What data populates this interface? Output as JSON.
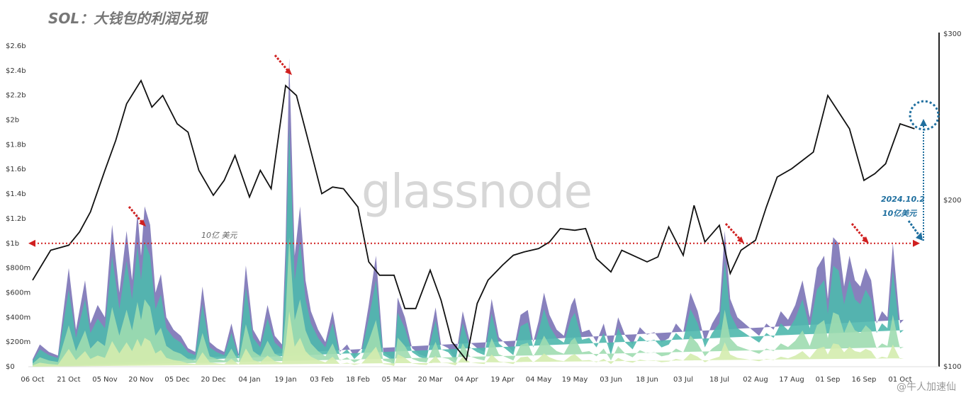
{
  "title": "SOL：大钱包的利润兑现",
  "watermark": "glassnode",
  "corner_mark": "@牛人加速仙",
  "chart_data": {
    "type": "area",
    "title": "SOL：大钱包的利润兑现",
    "left_axis": {
      "ticks": [
        "$0",
        "$200m",
        "$400m",
        "$600m",
        "$800m",
        "$1b",
        "$1.2b",
        "$1.4b",
        "$1.6b",
        "$1.8b",
        "$2b",
        "$2.2b",
        "$2.4b",
        "$2.6b"
      ],
      "tick_values": [
        0,
        200,
        400,
        600,
        800,
        1000,
        1200,
        1400,
        1600,
        1800,
        2000,
        2200,
        2400,
        2600
      ],
      "unit": "million USD"
    },
    "right_axis": {
      "ticks": [
        "$100",
        "$200",
        "$300"
      ],
      "tick_values": [
        100,
        200,
        300
      ]
    },
    "x_ticks": [
      "06 Oct",
      "21 Oct",
      "05 Nov",
      "20 Nov",
      "05 Dec",
      "20 Dec",
      "04 Jan",
      "19 Jan",
      "03 Feb",
      "18 Feb",
      "05 Mar",
      "20 Mar",
      "04 Apr",
      "19 Apr",
      "04 May",
      "19 May",
      "03 Jun",
      "18 Jun",
      "03 Jul",
      "18 Jul",
      "02 Aug",
      "17 Aug",
      "01 Sep",
      "16 Sep",
      "01 Oct"
    ],
    "price_series": {
      "name": "",
      "x_tick_index": [
        0,
        0.5,
        1,
        1.3,
        1.6,
        2,
        2.3,
        2.6,
        3,
        3.3,
        3.6,
        4,
        4.3,
        4.6,
        5,
        5.3,
        5.6,
        6,
        6.3,
        6.6,
        7,
        7.3,
        7.6,
        8,
        8.3,
        8.6,
        9,
        9.3,
        9.6,
        10,
        10.3,
        10.6,
        11,
        11.3,
        11.6,
        12,
        12.3,
        12.6,
        13,
        13.3,
        13.6,
        14,
        14.3,
        14.6,
        15,
        15.3,
        15.6,
        16,
        16.3,
        16.6,
        17,
        17.3,
        17.6,
        18,
        18.3,
        18.6,
        19,
        19.3,
        19.6,
        20,
        20.3,
        20.6,
        21,
        21.3,
        21.6,
        22,
        22.3,
        22.6,
        23,
        23.3,
        23.6,
        24,
        24.4
      ],
      "values": [
        152,
        170,
        173,
        181,
        193,
        218,
        236,
        258,
        272,
        256,
        263,
        246,
        241,
        218,
        203,
        212,
        227,
        202,
        218,
        207,
        269,
        263,
        238,
        204,
        208,
        207,
        196,
        163,
        155,
        155,
        135,
        135,
        158,
        140,
        115,
        104,
        138,
        152,
        161,
        167,
        169,
        171,
        175,
        183,
        182,
        183,
        165,
        157,
        170,
        167,
        163,
        166,
        184,
        167,
        197,
        175,
        185,
        156,
        170,
        176,
        196,
        214,
        219,
        224,
        229,
        263,
        253,
        243,
        212,
        216,
        222,
        246,
        243
      ]
    },
    "area_series": [
      {
        "name": "",
        "color": "#7b73b6"
      },
      {
        "name": "",
        "color": "#4fb8ad"
      },
      {
        "name": "",
        "color": "#9fdcb0"
      },
      {
        "name": "",
        "color": "#d4ecae"
      }
    ],
    "area_total": {
      "x_tick_index": [
        0,
        0.2,
        0.45,
        0.7,
        1,
        1.2,
        1.45,
        1.6,
        1.8,
        2,
        2.2,
        2.4,
        2.6,
        2.75,
        2.9,
        3,
        3.1,
        3.25,
        3.4,
        3.55,
        3.7,
        3.9,
        4.1,
        4.3,
        4.5,
        4.7,
        4.9,
        5.1,
        5.3,
        5.5,
        5.7,
        5.9,
        6.1,
        6.3,
        6.5,
        6.7,
        6.9,
        7,
        7.1,
        7.25,
        7.4,
        7.55,
        7.7,
        7.9,
        8.1,
        8.3,
        8.5,
        8.7,
        8.9,
        9.1,
        9.3,
        9.5,
        9.7,
        9.9,
        10,
        10.1,
        10.3,
        10.5,
        10.7,
        10.9,
        11,
        11.15,
        11.3,
        11.5,
        11.7,
        11.9,
        12.1,
        12.3,
        12.5,
        12.7,
        12.9,
        13.1,
        13.3,
        13.5,
        13.7,
        13.85,
        14,
        14.15,
        14.3,
        14.5,
        14.7,
        14.9,
        15,
        15.2,
        15.4,
        15.6,
        15.8,
        16,
        16.2,
        16.4,
        16.6,
        16.8,
        17,
        17.2,
        17.4,
        17.6,
        17.8,
        18,
        18.2,
        18.4,
        18.6,
        18.8,
        19,
        19.15,
        19.3,
        19.5,
        19.7,
        19.9,
        20.1,
        20.3,
        20.5,
        20.7,
        20.9,
        21.1,
        21.3,
        21.5,
        21.7,
        21.9,
        22,
        22.15,
        22.3,
        22.45,
        22.6,
        22.75,
        22.9,
        23.05,
        23.2,
        23.35,
        23.5,
        23.65,
        23.8,
        23.95,
        24,
        24.1,
        24.2,
        24.35,
        24.5
      ],
      "values": [
        60,
        180,
        120,
        90,
        800,
        300,
        700,
        350,
        500,
        400,
        1150,
        600,
        1100,
        700,
        1250,
        900,
        1300,
        1150,
        600,
        750,
        400,
        300,
        250,
        150,
        120,
        650,
        200,
        150,
        120,
        350,
        100,
        820,
        300,
        200,
        500,
        250,
        180,
        1000,
        2500,
        900,
        1300,
        700,
        450,
        300,
        200,
        450,
        120,
        180,
        80,
        150,
        500,
        900,
        120,
        80,
        30,
        560,
        400,
        150,
        100,
        80,
        250,
        480,
        180,
        150,
        60,
        450,
        200,
        150,
        120,
        550,
        240,
        180,
        120,
        420,
        460,
        200,
        370,
        600,
        420,
        300,
        250,
        500,
        560,
        280,
        300,
        200,
        350,
        120,
        400,
        250,
        180,
        320,
        260,
        280,
        200,
        230,
        350,
        280,
        600,
        450,
        200,
        350,
        450,
        1100,
        550,
        400,
        350,
        300,
        250,
        350,
        300,
        450,
        380,
        500,
        700,
        400,
        800,
        900,
        550,
        1050,
        1000,
        650,
        900,
        700,
        650,
        800,
        700,
        350,
        450,
        400,
        1000,
        500,
        350,
        380
      ]
    },
    "reference_line": {
      "value": 1000,
      "label": "10亿 美元"
    },
    "annotations": [
      {
        "text": "2024.10.2"
      },
      {
        "text": "10亿美元"
      }
    ],
    "ylim_left": [
      0,
      2700
    ],
    "ylim_right": [
      100,
      304
    ],
    "grid": false,
    "legend": "none"
  }
}
